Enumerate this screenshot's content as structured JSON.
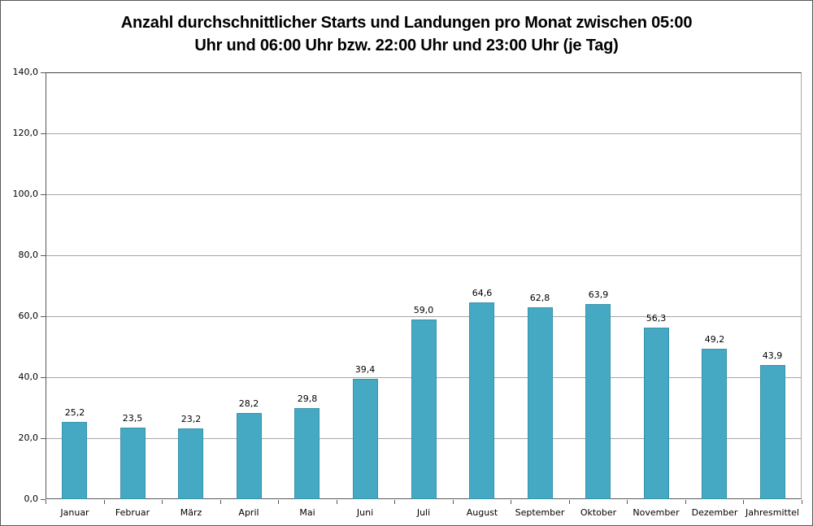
{
  "title": {
    "line1": "Anzahl durchschnittlicher Starts und Landungen pro Monat zwischen 05:00",
    "line2": "Uhr und 06:00 Uhr bzw. 22:00 Uhr und 23:00 Uhr (je Tag)"
  },
  "chart_data": {
    "type": "bar",
    "title": "Anzahl durchschnittlicher Starts und Landungen pro Monat zwischen 05:00 Uhr und 06:00 Uhr bzw. 22:00 Uhr und 23:00 Uhr (je Tag)",
    "categories": [
      "Januar",
      "Februar",
      "März",
      "April",
      "Mai",
      "Juni",
      "Juli",
      "August",
      "September",
      "Oktober",
      "November",
      "Dezember",
      "Jahresmittel"
    ],
    "values": [
      25.2,
      23.5,
      23.2,
      28.2,
      29.8,
      39.4,
      59.0,
      64.6,
      62.8,
      63.9,
      56.3,
      49.2,
      43.9
    ],
    "value_labels": [
      "25,2",
      "23,5",
      "23,2",
      "28,2",
      "29,8",
      "39,4",
      "59,0",
      "64,6",
      "62,8",
      "63,9",
      "56,3",
      "49,2",
      "43,9"
    ],
    "xlabel": "",
    "ylabel": "",
    "ylim": [
      0,
      140
    ],
    "ytick_step": 20,
    "ytick_labels": [
      "0,0",
      "20,0",
      "40,0",
      "60,0",
      "80,0",
      "100,0",
      "120,0",
      "140,0"
    ],
    "grid": true,
    "legend": false,
    "colors": {
      "bar_fill": "#45A9C3",
      "bar_border": "#3892AC",
      "gridline": "#A6A6A6",
      "axis": "#595959",
      "plot_border_top": "#404040",
      "plot_border_right": "#A6A6A6",
      "label": "#000000"
    }
  }
}
